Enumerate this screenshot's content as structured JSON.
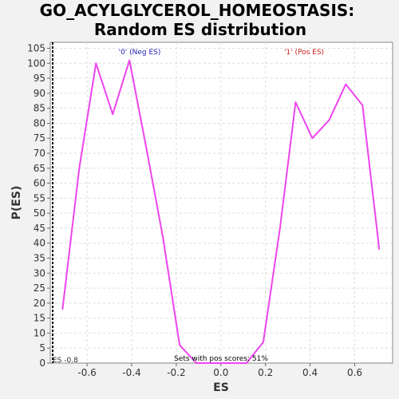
{
  "chart_data": {
    "type": "line",
    "title_line1": "GO_ACYLGLYCEROL_HOMEOSTASIS:",
    "title_line2": "Random ES distribution",
    "xlabel": "ES",
    "ylabel": "P(ES)",
    "xlim": [
      -0.765,
      0.77
    ],
    "ylim": [
      0,
      107
    ],
    "x_ticks": [
      -0.6,
      -0.4,
      -0.2,
      0.0,
      0.2,
      0.4,
      0.6
    ],
    "x_tick_labels": [
      "-0.6",
      "-0.4",
      "-0.2",
      "0.0",
      "0.2",
      "0.4",
      "0.6"
    ],
    "y_ticks": [
      0,
      5,
      10,
      15,
      20,
      25,
      30,
      35,
      40,
      45,
      50,
      55,
      60,
      65,
      70,
      75,
      80,
      85,
      90,
      95,
      100,
      105
    ],
    "grid": true,
    "series": [
      {
        "color": "#ee44ee",
        "x": [
          -0.71,
          -0.635,
          -0.56,
          -0.485,
          -0.41,
          -0.335,
          -0.26,
          -0.185,
          -0.11,
          -0.035,
          0.04,
          0.115,
          0.19,
          0.265,
          0.335,
          0.41,
          0.485,
          0.56,
          0.635,
          0.71
        ],
        "y": [
          18,
          65,
          100,
          83,
          101,
          72,
          42,
          6,
          0,
          0,
          0,
          0,
          7,
          45,
          87,
          75,
          81,
          93,
          86,
          38
        ]
      }
    ],
    "annotations": {
      "neg_label": "'0' (Neg ES)",
      "pos_label": "'1' (Pos ES)",
      "sets_text": "Sets with pos scores: 51%",
      "es_marker_text": "ES -0.8",
      "es_marker_value": -0.765
    },
    "colors": {
      "line": "#ee44ee",
      "neg_label": "#2222bb",
      "pos_label": "#cc2222",
      "grid": "#dddddd"
    }
  }
}
